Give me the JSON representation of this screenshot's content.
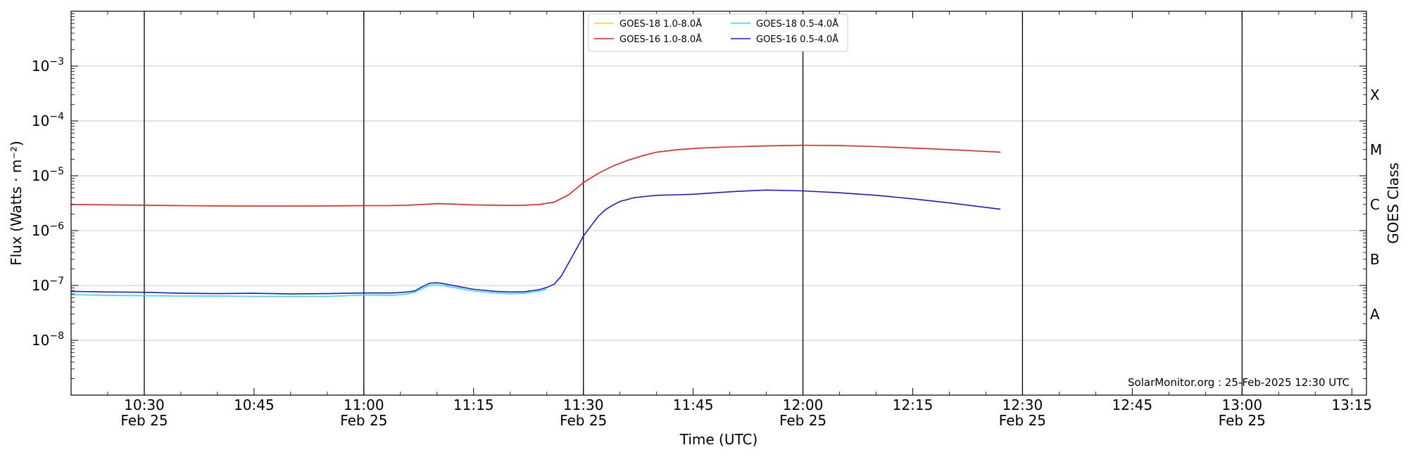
{
  "chart_data": {
    "type": "line",
    "xlabel": "Time (UTC)",
    "ylabel": "Flux (Watts · m⁻²)",
    "y2label": "GOES Class",
    "yscale": "log",
    "ylim": [
      1e-09,
      0.01
    ],
    "xlim": [
      "10:20",
      "13:17"
    ],
    "x_ticks": [
      {
        "t": "10:30",
        "label": "10:30",
        "sub": "Feb 25"
      },
      {
        "t": "10:45",
        "label": "10:45",
        "sub": ""
      },
      {
        "t": "11:00",
        "label": "11:00",
        "sub": "Feb 25"
      },
      {
        "t": "11:15",
        "label": "11:15",
        "sub": ""
      },
      {
        "t": "11:30",
        "label": "11:30",
        "sub": "Feb 25"
      },
      {
        "t": "11:45",
        "label": "11:45",
        "sub": ""
      },
      {
        "t": "12:00",
        "label": "12:00",
        "sub": "Feb 25"
      },
      {
        "t": "12:15",
        "label": "12:15",
        "sub": ""
      },
      {
        "t": "12:30",
        "label": "12:30",
        "sub": "Feb 25"
      },
      {
        "t": "12:45",
        "label": "12:45",
        "sub": ""
      },
      {
        "t": "13:00",
        "label": "13:00",
        "sub": "Feb 25"
      },
      {
        "t": "13:15",
        "label": "13:15",
        "sub": ""
      }
    ],
    "vertical_lines": [
      "10:30",
      "11:00",
      "11:30",
      "12:00",
      "12:30",
      "13:00"
    ],
    "y_ticks": [
      {
        "value": 1e-08,
        "base": "10",
        "exp": "−8"
      },
      {
        "value": 1e-07,
        "base": "10",
        "exp": "−7"
      },
      {
        "value": 1e-06,
        "base": "10",
        "exp": "−6"
      },
      {
        "value": 1e-05,
        "base": "10",
        "exp": "−5"
      },
      {
        "value": 0.0001,
        "base": "10",
        "exp": "−4"
      },
      {
        "value": 0.001,
        "base": "10",
        "exp": "−3"
      }
    ],
    "class_labels": [
      {
        "label": "A",
        "value": 3e-08
      },
      {
        "label": "B",
        "value": 3e-07
      },
      {
        "label": "C",
        "value": 3e-06
      },
      {
        "label": "M",
        "value": 3e-05
      },
      {
        "label": "X",
        "value": 0.0003
      }
    ],
    "grid": true,
    "legend_position": "top-center",
    "series": [
      {
        "name": "GOES-18 1.0-8.0Å",
        "color": "#ffd700",
        "x": [],
        "y": []
      },
      {
        "name": "GOES-16 1.0-8.0Å",
        "color": "#e8231c",
        "x": [
          "10:20",
          "10:25",
          "10:30",
          "10:35",
          "10:40",
          "10:45",
          "10:50",
          "10:55",
          "11:00",
          "11:03",
          "11:06",
          "11:08",
          "11:10",
          "11:12",
          "11:15",
          "11:18",
          "11:20",
          "11:22",
          "11:24",
          "11:26",
          "11:28",
          "11:30",
          "11:32",
          "11:34",
          "11:36",
          "11:38",
          "11:40",
          "11:43",
          "11:46",
          "11:50",
          "11:55",
          "12:00",
          "12:05",
          "12:10",
          "12:15",
          "12:20",
          "12:27"
        ],
        "y": [
          3e-06,
          2.95e-06,
          2.9e-06,
          2.85e-06,
          2.82e-06,
          2.8e-06,
          2.8e-06,
          2.82e-06,
          2.85e-06,
          2.85e-06,
          2.9e-06,
          3e-06,
          3.1e-06,
          3.05e-06,
          2.95e-06,
          2.9e-06,
          2.88e-06,
          2.9e-06,
          3e-06,
          3.3e-06,
          4.5e-06,
          7.5e-06,
          1.1e-05,
          1.5e-05,
          1.9e-05,
          2.3e-05,
          2.7e-05,
          3e-05,
          3.2e-05,
          3.35e-05,
          3.5e-05,
          3.6e-05,
          3.55e-05,
          3.4e-05,
          3.2e-05,
          3e-05,
          2.7e-05
        ]
      },
      {
        "name": "GOES-18 0.5-4.0Å",
        "color": "#2fe0ea",
        "x": [
          "10:20",
          "10:25",
          "10:30",
          "10:35",
          "10:40",
          "10:45",
          "10:50",
          "10:55",
          "11:00",
          "11:04",
          "11:06",
          "11:07",
          "11:08",
          "11:09",
          "11:10",
          "11:11",
          "11:13",
          "11:15",
          "11:18",
          "11:20",
          "11:22",
          "11:24",
          "11:25"
        ],
        "y": [
          6.8e-08,
          6.6e-08,
          6.5e-08,
          6.4e-08,
          6.4e-08,
          6.3e-08,
          6.3e-08,
          6.3e-08,
          6.7e-08,
          6.6e-08,
          7e-08,
          7.5e-08,
          8.8e-08,
          1e-07,
          1.02e-07,
          9.8e-08,
          8.8e-08,
          7.9e-08,
          7.3e-08,
          7e-08,
          7.2e-08,
          7.9e-08,
          8.5e-08
        ]
      },
      {
        "name": "GOES-16 0.5-4.0Å",
        "color": "#1a1adc",
        "x": [
          "10:20",
          "10:25",
          "10:30",
          "10:35",
          "10:40",
          "10:45",
          "10:50",
          "10:55",
          "11:00",
          "11:04",
          "11:06",
          "11:07",
          "11:08",
          "11:09",
          "11:10",
          "11:11",
          "11:13",
          "11:15",
          "11:18",
          "11:20",
          "11:22",
          "11:24",
          "11:25",
          "11:26",
          "11:27",
          "11:28",
          "11:29",
          "11:30",
          "11:31",
          "11:32",
          "11:33",
          "11:34",
          "11:35",
          "11:37",
          "11:40",
          "11:43",
          "11:45",
          "11:48",
          "11:51",
          "11:55",
          "12:00",
          "12:05",
          "12:10",
          "12:15",
          "12:20",
          "12:27"
        ],
        "y": [
          7.8e-08,
          7.6e-08,
          7.5e-08,
          7.2e-08,
          7.1e-08,
          7.2e-08,
          7e-08,
          7.1e-08,
          7.3e-08,
          7.3e-08,
          7.6e-08,
          8e-08,
          9.5e-08,
          1.1e-07,
          1.12e-07,
          1.07e-07,
          9.5e-08,
          8.5e-08,
          7.8e-08,
          7.6e-08,
          7.7e-08,
          8.4e-08,
          9.2e-08,
          1.05e-07,
          1.5e-07,
          2.6e-07,
          4.5e-07,
          8e-07,
          1.2e-06,
          1.8e-06,
          2.4e-06,
          2.9e-06,
          3.4e-06,
          4e-06,
          4.4e-06,
          4.5e-06,
          4.6e-06,
          4.9e-06,
          5.2e-06,
          5.5e-06,
          5.3e-06,
          4.9e-06,
          4.4e-06,
          3.8e-06,
          3.2e-06,
          2.45e-06
        ]
      }
    ],
    "annotation": "SolarMonitor.org : 25-Feb-2025 12:30 UTC"
  }
}
